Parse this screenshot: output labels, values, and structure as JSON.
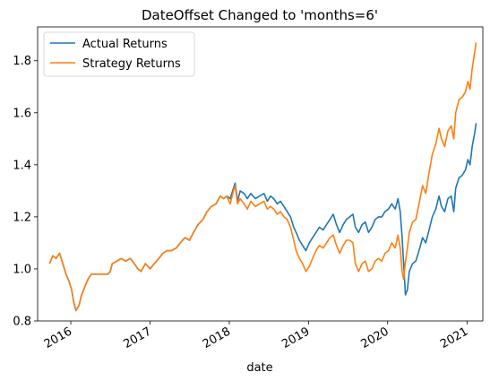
{
  "chart_data": {
    "type": "line",
    "title": "DateOffset Changed to 'months=6'",
    "xlabel": "date",
    "ylabel": "",
    "xlim": [
      "2015-08-01",
      "2021-03-15"
    ],
    "ylim": [
      0.8,
      1.93
    ],
    "x_ticks": [
      "2016",
      "2017",
      "2018",
      "2019",
      "2020",
      "2021"
    ],
    "y_ticks": [
      "0.8",
      "1.0",
      "1.2",
      "1.4",
      "1.6",
      "1.8"
    ],
    "legend_position": "upper-left",
    "grid": false,
    "series": [
      {
        "name": "Actual Returns",
        "color": "#1f77b4",
        "points": [
          [
            "2015-09-25",
            1.02
          ],
          [
            "2015-10-10",
            1.05
          ],
          [
            "2015-10-25",
            1.04
          ],
          [
            "2015-11-10",
            1.06
          ],
          [
            "2015-11-25",
            1.02
          ],
          [
            "2015-12-10",
            0.98
          ],
          [
            "2015-12-25",
            0.95
          ],
          [
            "2016-01-05",
            0.92
          ],
          [
            "2016-01-15",
            0.87
          ],
          [
            "2016-01-25",
            0.84
          ],
          [
            "2016-02-08",
            0.86
          ],
          [
            "2016-02-20",
            0.9
          ],
          [
            "2016-03-05",
            0.93
          ],
          [
            "2016-03-20",
            0.96
          ],
          [
            "2016-04-05",
            0.98
          ],
          [
            "2016-04-20",
            0.98
          ],
          [
            "2016-05-20",
            0.98
          ],
          [
            "2016-06-20",
            0.98
          ],
          [
            "2016-07-01",
            0.99
          ],
          [
            "2016-07-10",
            1.02
          ],
          [
            "2016-08-01",
            1.03
          ],
          [
            "2016-08-20",
            1.04
          ],
          [
            "2016-09-10",
            1.03
          ],
          [
            "2016-10-01",
            1.04
          ],
          [
            "2016-10-20",
            1.02
          ],
          [
            "2016-11-05",
            1.0
          ],
          [
            "2016-11-20",
            0.99
          ],
          [
            "2016-12-10",
            1.02
          ],
          [
            "2017-01-01",
            1.0
          ],
          [
            "2017-01-20",
            1.02
          ],
          [
            "2017-02-10",
            1.04
          ],
          [
            "2017-03-01",
            1.06
          ],
          [
            "2017-03-20",
            1.07
          ],
          [
            "2017-04-10",
            1.07
          ],
          [
            "2017-05-01",
            1.08
          ],
          [
            "2017-05-20",
            1.1
          ],
          [
            "2017-06-10",
            1.12
          ],
          [
            "2017-07-01",
            1.11
          ],
          [
            "2017-07-20",
            1.14
          ],
          [
            "2017-08-10",
            1.17
          ],
          [
            "2017-09-01",
            1.19
          ],
          [
            "2017-09-20",
            1.22
          ],
          [
            "2017-10-10",
            1.24
          ],
          [
            "2017-11-01",
            1.25
          ],
          [
            "2017-11-20",
            1.28
          ],
          [
            "2017-12-05",
            1.27
          ],
          [
            "2017-12-20",
            1.28
          ],
          [
            "2018-01-05",
            1.27
          ],
          [
            "2018-01-20",
            1.31
          ],
          [
            "2018-01-28",
            1.33
          ],
          [
            "2018-02-08",
            1.26
          ],
          [
            "2018-02-20",
            1.3
          ],
          [
            "2018-03-10",
            1.29
          ],
          [
            "2018-03-25",
            1.27
          ],
          [
            "2018-04-10",
            1.29
          ],
          [
            "2018-05-01",
            1.27
          ],
          [
            "2018-05-20",
            1.28
          ],
          [
            "2018-06-10",
            1.29
          ],
          [
            "2018-06-25",
            1.26
          ],
          [
            "2018-07-10",
            1.28
          ],
          [
            "2018-07-25",
            1.27
          ],
          [
            "2018-08-10",
            1.25
          ],
          [
            "2018-08-25",
            1.26
          ],
          [
            "2018-09-10",
            1.24
          ],
          [
            "2018-09-25",
            1.22
          ],
          [
            "2018-10-10",
            1.2
          ],
          [
            "2018-10-25",
            1.16
          ],
          [
            "2018-11-05",
            1.14
          ],
          [
            "2018-11-20",
            1.11
          ],
          [
            "2018-12-05",
            1.09
          ],
          [
            "2018-12-20",
            1.07
          ],
          [
            "2019-01-05",
            1.1
          ],
          [
            "2019-01-20",
            1.12
          ],
          [
            "2019-02-05",
            1.14
          ],
          [
            "2019-02-20",
            1.16
          ],
          [
            "2019-03-10",
            1.15
          ],
          [
            "2019-03-25",
            1.17
          ],
          [
            "2019-04-10",
            1.19
          ],
          [
            "2019-04-25",
            1.21
          ],
          [
            "2019-05-10",
            1.17
          ],
          [
            "2019-05-25",
            1.14
          ],
          [
            "2019-06-10",
            1.17
          ],
          [
            "2019-06-25",
            1.19
          ],
          [
            "2019-07-10",
            1.2
          ],
          [
            "2019-07-25",
            1.21
          ],
          [
            "2019-08-05",
            1.16
          ],
          [
            "2019-08-20",
            1.14
          ],
          [
            "2019-09-05",
            1.17
          ],
          [
            "2019-09-20",
            1.18
          ],
          [
            "2019-10-05",
            1.14
          ],
          [
            "2019-10-20",
            1.16
          ],
          [
            "2019-11-05",
            1.19
          ],
          [
            "2019-11-20",
            1.2
          ],
          [
            "2019-12-05",
            1.2
          ],
          [
            "2019-12-20",
            1.22
          ],
          [
            "2020-01-05",
            1.23
          ],
          [
            "2020-01-20",
            1.25
          ],
          [
            "2020-02-05",
            1.23
          ],
          [
            "2020-02-18",
            1.27
          ],
          [
            "2020-02-28",
            1.22
          ],
          [
            "2020-03-08",
            1.12
          ],
          [
            "2020-03-15",
            1.02
          ],
          [
            "2020-03-23",
            0.9
          ],
          [
            "2020-04-01",
            0.92
          ],
          [
            "2020-04-10",
            0.99
          ],
          [
            "2020-04-25",
            1.02
          ],
          [
            "2020-05-10",
            1.03
          ],
          [
            "2020-05-25",
            1.07
          ],
          [
            "2020-06-10",
            1.12
          ],
          [
            "2020-06-25",
            1.1
          ],
          [
            "2020-07-10",
            1.15
          ],
          [
            "2020-07-25",
            1.2
          ],
          [
            "2020-08-10",
            1.23
          ],
          [
            "2020-08-25",
            1.28
          ],
          [
            "2020-09-05",
            1.24
          ],
          [
            "2020-09-20",
            1.22
          ],
          [
            "2020-10-05",
            1.27
          ],
          [
            "2020-10-20",
            1.28
          ],
          [
            "2020-11-01",
            1.22
          ],
          [
            "2020-11-10",
            1.31
          ],
          [
            "2020-11-25",
            1.35
          ],
          [
            "2020-12-10",
            1.36
          ],
          [
            "2020-12-25",
            1.38
          ],
          [
            "2021-01-05",
            1.42
          ],
          [
            "2021-01-15",
            1.4
          ],
          [
            "2021-01-25",
            1.47
          ],
          [
            "2021-02-05",
            1.52
          ],
          [
            "2021-02-12",
            1.56
          ]
        ]
      },
      {
        "name": "Strategy Returns",
        "color": "#ff7f0e",
        "points": [
          [
            "2015-09-25",
            1.02
          ],
          [
            "2015-10-10",
            1.05
          ],
          [
            "2015-10-25",
            1.04
          ],
          [
            "2015-11-10",
            1.06
          ],
          [
            "2015-11-25",
            1.02
          ],
          [
            "2015-12-10",
            0.98
          ],
          [
            "2015-12-25",
            0.95
          ],
          [
            "2016-01-05",
            0.92
          ],
          [
            "2016-01-15",
            0.87
          ],
          [
            "2016-01-25",
            0.84
          ],
          [
            "2016-02-08",
            0.86
          ],
          [
            "2016-02-20",
            0.9
          ],
          [
            "2016-03-05",
            0.93
          ],
          [
            "2016-03-20",
            0.96
          ],
          [
            "2016-04-05",
            0.98
          ],
          [
            "2016-04-20",
            0.98
          ],
          [
            "2016-05-20",
            0.98
          ],
          [
            "2016-06-20",
            0.98
          ],
          [
            "2016-07-01",
            0.99
          ],
          [
            "2016-07-10",
            1.02
          ],
          [
            "2016-08-01",
            1.03
          ],
          [
            "2016-08-20",
            1.04
          ],
          [
            "2016-09-10",
            1.03
          ],
          [
            "2016-10-01",
            1.04
          ],
          [
            "2016-10-20",
            1.02
          ],
          [
            "2016-11-05",
            1.0
          ],
          [
            "2016-11-20",
            0.99
          ],
          [
            "2016-12-10",
            1.02
          ],
          [
            "2017-01-01",
            1.0
          ],
          [
            "2017-01-20",
            1.02
          ],
          [
            "2017-02-10",
            1.04
          ],
          [
            "2017-03-01",
            1.06
          ],
          [
            "2017-03-20",
            1.07
          ],
          [
            "2017-04-10",
            1.07
          ],
          [
            "2017-05-01",
            1.08
          ],
          [
            "2017-05-20",
            1.1
          ],
          [
            "2017-06-10",
            1.12
          ],
          [
            "2017-07-01",
            1.11
          ],
          [
            "2017-07-20",
            1.14
          ],
          [
            "2017-08-10",
            1.17
          ],
          [
            "2017-09-01",
            1.19
          ],
          [
            "2017-09-20",
            1.22
          ],
          [
            "2017-10-10",
            1.24
          ],
          [
            "2017-11-01",
            1.25
          ],
          [
            "2017-11-20",
            1.28
          ],
          [
            "2017-12-05",
            1.27
          ],
          [
            "2017-12-20",
            1.28
          ],
          [
            "2018-01-05",
            1.25
          ],
          [
            "2018-01-20",
            1.3
          ],
          [
            "2018-01-28",
            1.32
          ],
          [
            "2018-02-08",
            1.25
          ],
          [
            "2018-02-20",
            1.27
          ],
          [
            "2018-03-10",
            1.25
          ],
          [
            "2018-03-25",
            1.23
          ],
          [
            "2018-04-10",
            1.26
          ],
          [
            "2018-05-01",
            1.24
          ],
          [
            "2018-05-20",
            1.25
          ],
          [
            "2018-06-10",
            1.26
          ],
          [
            "2018-06-25",
            1.23
          ],
          [
            "2018-07-10",
            1.24
          ],
          [
            "2018-07-25",
            1.23
          ],
          [
            "2018-08-10",
            1.21
          ],
          [
            "2018-08-25",
            1.22
          ],
          [
            "2018-09-10",
            1.2
          ],
          [
            "2018-09-25",
            1.19
          ],
          [
            "2018-10-10",
            1.16
          ],
          [
            "2018-10-25",
            1.11
          ],
          [
            "2018-11-05",
            1.07
          ],
          [
            "2018-11-20",
            1.04
          ],
          [
            "2018-12-05",
            1.02
          ],
          [
            "2018-12-20",
            0.99
          ],
          [
            "2019-01-05",
            1.01
          ],
          [
            "2019-01-20",
            1.04
          ],
          [
            "2019-02-05",
            1.07
          ],
          [
            "2019-02-20",
            1.09
          ],
          [
            "2019-03-10",
            1.08
          ],
          [
            "2019-03-25",
            1.1
          ],
          [
            "2019-04-10",
            1.12
          ],
          [
            "2019-04-25",
            1.13
          ],
          [
            "2019-05-10",
            1.09
          ],
          [
            "2019-05-25",
            1.06
          ],
          [
            "2019-06-10",
            1.09
          ],
          [
            "2019-06-25",
            1.11
          ],
          [
            "2019-07-10",
            1.11
          ],
          [
            "2019-07-25",
            1.1
          ],
          [
            "2019-08-05",
            1.02
          ],
          [
            "2019-08-20",
            0.99
          ],
          [
            "2019-09-05",
            1.02
          ],
          [
            "2019-09-20",
            1.03
          ],
          [
            "2019-10-05",
            0.99
          ],
          [
            "2019-10-20",
            1.0
          ],
          [
            "2019-11-05",
            1.03
          ],
          [
            "2019-11-20",
            1.04
          ],
          [
            "2019-12-05",
            1.03
          ],
          [
            "2019-12-20",
            1.06
          ],
          [
            "2020-01-05",
            1.07
          ],
          [
            "2020-01-20",
            1.1
          ],
          [
            "2020-02-05",
            1.08
          ],
          [
            "2020-02-18",
            1.13
          ],
          [
            "2020-02-28",
            1.08
          ],
          [
            "2020-03-08",
            0.99
          ],
          [
            "2020-03-15",
            0.96
          ],
          [
            "2020-03-22",
            1.02
          ],
          [
            "2020-04-01",
            1.08
          ],
          [
            "2020-04-10",
            1.14
          ],
          [
            "2020-04-25",
            1.18
          ],
          [
            "2020-05-10",
            1.19
          ],
          [
            "2020-05-25",
            1.25
          ],
          [
            "2020-06-10",
            1.32
          ],
          [
            "2020-06-25",
            1.29
          ],
          [
            "2020-07-10",
            1.37
          ],
          [
            "2020-07-25",
            1.44
          ],
          [
            "2020-08-10",
            1.48
          ],
          [
            "2020-08-25",
            1.54
          ],
          [
            "2020-09-05",
            1.5
          ],
          [
            "2020-09-20",
            1.47
          ],
          [
            "2020-10-05",
            1.53
          ],
          [
            "2020-10-20",
            1.55
          ],
          [
            "2020-11-01",
            1.5
          ],
          [
            "2020-11-10",
            1.6
          ],
          [
            "2020-11-25",
            1.65
          ],
          [
            "2020-12-10",
            1.66
          ],
          [
            "2020-12-25",
            1.68
          ],
          [
            "2021-01-05",
            1.72
          ],
          [
            "2021-01-15",
            1.69
          ],
          [
            "2021-01-25",
            1.77
          ],
          [
            "2021-02-05",
            1.83
          ],
          [
            "2021-02-12",
            1.87
          ]
        ]
      }
    ]
  }
}
